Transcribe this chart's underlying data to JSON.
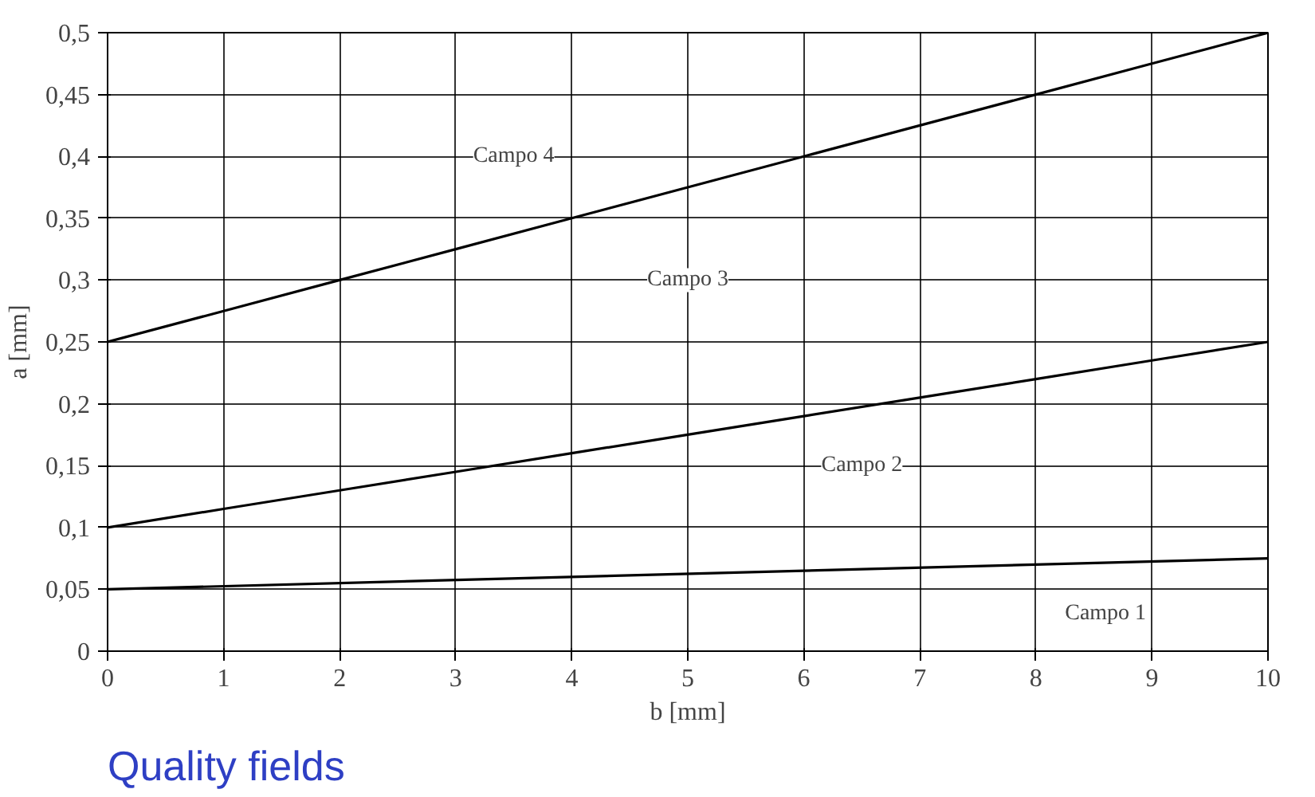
{
  "chart_data": {
    "type": "line",
    "title": "Quality fields",
    "xlabel": "b [mm]",
    "ylabel": "a [mm]",
    "x": [
      0,
      1,
      2,
      3,
      4,
      5,
      6,
      7,
      8,
      9,
      10
    ],
    "series": [
      {
        "color": "#000000",
        "x": [
          0,
          10
        ],
        "values": [
          0.05,
          0.075
        ]
      },
      {
        "color": "#000000",
        "values": [
          0.1,
          0.115,
          0.13,
          0.145,
          0.16,
          0.175,
          0.19,
          0.205,
          0.22,
          0.235,
          0.25
        ]
      },
      {
        "color": "#000000",
        "values": [
          0.25,
          0.275,
          0.3,
          0.325,
          0.35,
          0.375,
          0.4,
          0.425,
          0.45,
          0.475,
          0.5
        ]
      }
    ],
    "annotations": [
      "Campo 4",
      "Campo 3",
      "Campo 2",
      "Campo 1"
    ],
    "xlim": [
      0,
      10
    ],
    "ylim": [
      0,
      0.5
    ],
    "xticks": [
      0,
      1,
      2,
      3,
      4,
      5,
      6,
      7,
      8,
      9,
      10
    ],
    "yticks": [
      0,
      {
        "value": 0.05,
        "label": "0,05"
      },
      {
        "value": 0.1,
        "label": "0,1"
      },
      {
        "value": 0.15,
        "label": "0,15"
      },
      {
        "value": 0.2,
        "label": "0,2"
      },
      {
        "value": 0.25,
        "label": "0,25"
      },
      {
        "value": 0.3,
        "label": "0,3"
      },
      {
        "value": 0.35,
        "label": "0,35"
      },
      {
        "value": 0.4,
        "label": "0,4"
      },
      {
        "value": 0.45,
        "label": "0,45"
      },
      {
        "value": 0.5,
        "label": "0,5"
      }
    ],
    "grid": true,
    "marker": "none",
    "line_style": "solid"
  }
}
